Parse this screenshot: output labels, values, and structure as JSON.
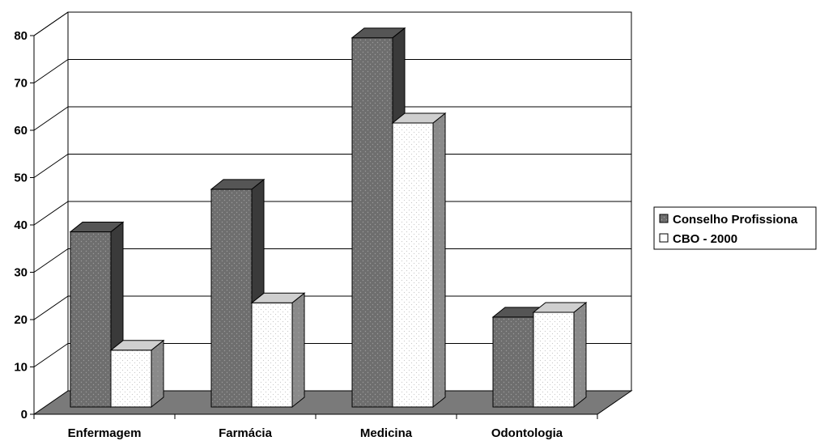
{
  "chart_data": {
    "type": "bar",
    "title": "",
    "xlabel": "",
    "ylabel": "",
    "ylim": [
      0,
      80
    ],
    "yticks": [
      0,
      10,
      20,
      30,
      40,
      50,
      60,
      70,
      80
    ],
    "categories": [
      "Enfermagem",
      "Farmácia",
      "Medicina",
      "Odontologia"
    ],
    "series": [
      {
        "name": "Conselho Profissiona",
        "values": [
          37,
          46,
          78,
          19
        ],
        "color": "#6e6e6e",
        "side_color": "#3a3a3a",
        "top_color": "#555555"
      },
      {
        "name": "CBO - 2000",
        "values": [
          12,
          22,
          60,
          20
        ],
        "color": "#ffffff",
        "side_color": "#8a8a8a",
        "top_color": "#cfcfcf"
      }
    ],
    "grid": true,
    "legend_position": "right",
    "style": "3d-clustered-column"
  }
}
